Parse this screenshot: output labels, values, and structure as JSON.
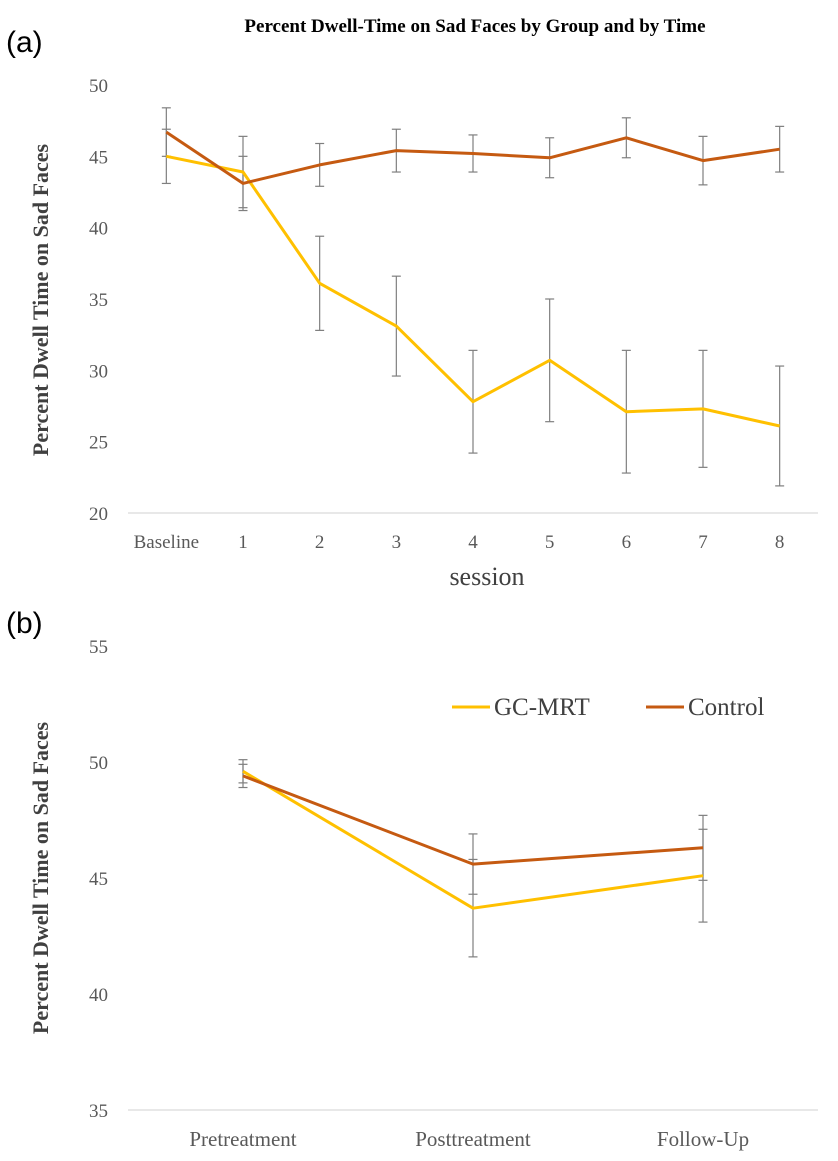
{
  "chart_data": [
    {
      "type": "line",
      "panel_label": "(a)",
      "title": "Percent Dwell-Time on Sad Faces by Group and by Time",
      "xlabel": "session",
      "ylabel": "Percent Dwell Time on Sad Faces",
      "categories": [
        "Baseline",
        "1",
        "2",
        "3",
        "4",
        "5",
        "6",
        "7",
        "8"
      ],
      "ylim": [
        20,
        50
      ],
      "yticks": [
        "20",
        "25",
        "30",
        "35",
        "40",
        "45",
        "50"
      ],
      "grid": false,
      "series": [
        {
          "color": "#FFC000",
          "values": [
            45.0,
            43.9,
            36.1,
            33.1,
            27.8,
            30.7,
            27.1,
            27.3,
            26.1
          ],
          "error": [
            1.9,
            2.5,
            3.3,
            3.5,
            3.6,
            4.3,
            4.3,
            4.1,
            4.2
          ]
        },
        {
          "color": "#C55A11",
          "values": [
            46.7,
            43.1,
            44.4,
            45.4,
            45.2,
            44.9,
            46.3,
            44.7,
            45.5
          ],
          "error": [
            1.7,
            1.9,
            1.5,
            1.5,
            1.3,
            1.4,
            1.4,
            1.7,
            1.6
          ]
        }
      ]
    },
    {
      "type": "line",
      "panel_label": "(b)",
      "ylabel": "Percent Dwell Time on Sad Faces",
      "categories": [
        "Pretreatment",
        "Posttreatment",
        "Follow-Up"
      ],
      "ylim": [
        35,
        55
      ],
      "yticks": [
        "35",
        "40",
        "45",
        "50",
        "55"
      ],
      "grid": false,
      "legend": "top-right",
      "series": [
        {
          "name": "GC-MRT",
          "color": "#FFC000",
          "values": [
            49.6,
            43.7,
            45.1
          ],
          "error": [
            0.5,
            2.1,
            2.0
          ]
        },
        {
          "name": "Control",
          "color": "#C55A11",
          "values": [
            49.4,
            45.6,
            46.3
          ],
          "error": [
            0.5,
            1.3,
            1.4
          ]
        }
      ]
    }
  ]
}
